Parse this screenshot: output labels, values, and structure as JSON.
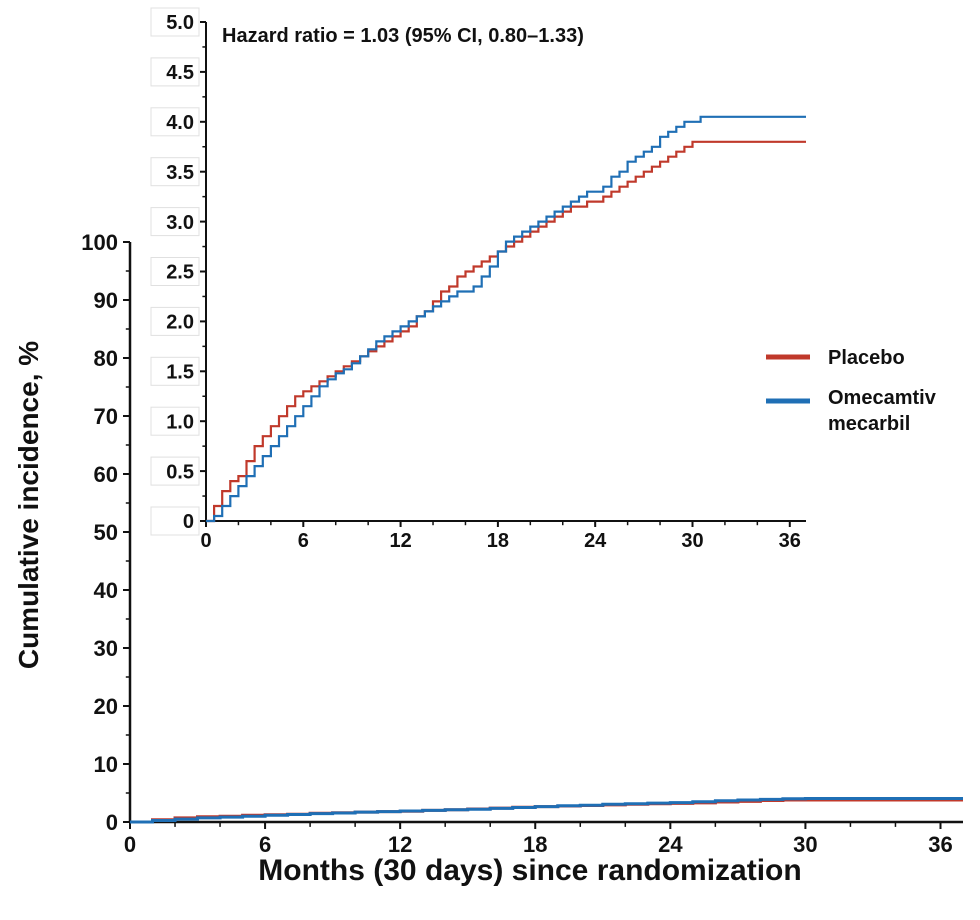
{
  "chart_data": [
    {
      "id": "main",
      "type": "line",
      "step": true,
      "ylabel": "Cumulative incidence, %",
      "xlabel": "Months (30 days) since randomization",
      "xlim": [
        0,
        37
      ],
      "ylim": [
        0,
        100
      ],
      "xticks": [
        "0",
        "6",
        "12",
        "18",
        "24",
        "30",
        "36"
      ],
      "yticks": [
        "0",
        "10",
        "20",
        "30",
        "40",
        "50",
        "60",
        "70",
        "80",
        "90",
        "100"
      ],
      "grid": false,
      "series": [
        {
          "name": "Placebo",
          "color": "#c0392b",
          "x": [
            0,
            1,
            2,
            3,
            4,
            5,
            6,
            7,
            8,
            9,
            10,
            11,
            12,
            13,
            14,
            15,
            16,
            17,
            18,
            19,
            20,
            21,
            22,
            23,
            24,
            25,
            26,
            27,
            28,
            29,
            30,
            31,
            32,
            33,
            34,
            35,
            36,
            37
          ],
          "values": [
            0,
            0.4,
            0.7,
            0.9,
            1.0,
            1.15,
            1.25,
            1.35,
            1.5,
            1.6,
            1.7,
            1.8,
            1.85,
            2.0,
            2.1,
            2.25,
            2.4,
            2.55,
            2.65,
            2.75,
            2.85,
            2.95,
            3.05,
            3.15,
            3.2,
            3.3,
            3.45,
            3.55,
            3.7,
            3.8,
            3.8,
            3.8,
            3.8,
            3.8,
            3.8,
            3.8,
            3.8,
            3.8
          ]
        },
        {
          "name": "Omecamtiv mecarbil",
          "color": "#1f6fb5",
          "x": [
            0,
            1,
            2,
            3,
            4,
            5,
            6,
            7,
            8,
            9,
            10,
            11,
            12,
            13,
            14,
            15,
            16,
            17,
            18,
            19,
            20,
            21,
            22,
            23,
            24,
            25,
            26,
            27,
            28,
            29,
            30,
            31,
            32,
            33,
            34,
            35,
            36,
            37
          ],
          "values": [
            0,
            0.25,
            0.5,
            0.7,
            0.85,
            1.0,
            1.15,
            1.3,
            1.45,
            1.55,
            1.7,
            1.8,
            1.9,
            2.0,
            2.1,
            2.2,
            2.35,
            2.5,
            2.65,
            2.8,
            2.9,
            3.05,
            3.15,
            3.25,
            3.35,
            3.5,
            3.65,
            3.8,
            3.9,
            4.0,
            4.05,
            4.05,
            4.05,
            4.05,
            4.05,
            4.05,
            4.05,
            4.05
          ]
        }
      ]
    },
    {
      "id": "inset",
      "type": "line",
      "step": true,
      "annotation": "Hazard ratio = 1.03 (95% CI, 0.80–1.33)",
      "xlim": [
        0,
        37
      ],
      "ylim": [
        0,
        5.0
      ],
      "xticks": [
        "0",
        "6",
        "12",
        "18",
        "24",
        "30",
        "36"
      ],
      "yticks": [
        "0",
        "0.5",
        "1.0",
        "1.5",
        "2.0",
        "2.5",
        "3.0",
        "3.5",
        "4.0",
        "4.5",
        "5.0"
      ],
      "grid": false,
      "series": [
        {
          "name": "Placebo",
          "color": "#c0392b",
          "x": [
            0,
            0.5,
            1,
            1.5,
            2,
            2.5,
            3,
            3.5,
            4,
            4.5,
            5,
            5.5,
            6,
            6.5,
            7,
            7.5,
            8,
            8.5,
            9,
            9.5,
            10,
            10.5,
            11,
            11.5,
            12,
            12.5,
            13,
            13.5,
            14,
            14.5,
            15,
            15.5,
            16,
            16.5,
            17,
            17.5,
            18,
            18.5,
            19,
            19.5,
            20,
            20.5,
            21,
            21.5,
            22,
            22.5,
            23,
            23.5,
            24,
            24.5,
            25,
            25.5,
            26,
            26.5,
            27,
            27.5,
            28,
            28.5,
            29,
            29.5,
            30,
            31,
            32,
            33,
            34,
            35,
            36,
            37
          ],
          "values": [
            0,
            0.15,
            0.3,
            0.4,
            0.45,
            0.6,
            0.75,
            0.85,
            0.95,
            1.05,
            1.15,
            1.25,
            1.3,
            1.35,
            1.4,
            1.45,
            1.5,
            1.55,
            1.6,
            1.65,
            1.7,
            1.75,
            1.8,
            1.85,
            1.9,
            1.95,
            2.05,
            2.1,
            2.2,
            2.3,
            2.35,
            2.45,
            2.5,
            2.55,
            2.6,
            2.65,
            2.7,
            2.75,
            2.8,
            2.85,
            2.9,
            2.95,
            3.0,
            3.05,
            3.1,
            3.15,
            3.15,
            3.2,
            3.2,
            3.25,
            3.3,
            3.35,
            3.4,
            3.45,
            3.5,
            3.55,
            3.6,
            3.65,
            3.7,
            3.75,
            3.8,
            3.8,
            3.8,
            3.8,
            3.8,
            3.8,
            3.8,
            3.8
          ]
        },
        {
          "name": "Omecamtiv mecarbil",
          "color": "#1f6fb5",
          "x": [
            0,
            0.5,
            1,
            1.5,
            2,
            2.5,
            3,
            3.5,
            4,
            4.5,
            5,
            5.5,
            6,
            6.5,
            7,
            7.5,
            8,
            8.5,
            9,
            9.5,
            10,
            10.5,
            11,
            11.5,
            12,
            12.5,
            13,
            13.5,
            14,
            14.5,
            15,
            15.5,
            16,
            16.5,
            17,
            17.5,
            18,
            18.5,
            19,
            19.5,
            20,
            20.5,
            21,
            21.5,
            22,
            22.5,
            23,
            23.5,
            24,
            24.5,
            25,
            25.5,
            26,
            26.5,
            27,
            27.5,
            28,
            28.5,
            29,
            29.5,
            30,
            30.5,
            31,
            32,
            33,
            34,
            35,
            36,
            37
          ],
          "values": [
            0,
            0.05,
            0.15,
            0.25,
            0.35,
            0.45,
            0.55,
            0.65,
            0.75,
            0.85,
            0.95,
            1.05,
            1.15,
            1.25,
            1.35,
            1.42,
            1.48,
            1.52,
            1.58,
            1.65,
            1.72,
            1.8,
            1.85,
            1.9,
            1.95,
            2.0,
            2.05,
            2.1,
            2.15,
            2.2,
            2.25,
            2.3,
            2.3,
            2.35,
            2.45,
            2.55,
            2.7,
            2.8,
            2.85,
            2.9,
            2.95,
            3.0,
            3.05,
            3.1,
            3.15,
            3.2,
            3.25,
            3.3,
            3.3,
            3.35,
            3.45,
            3.5,
            3.6,
            3.65,
            3.7,
            3.75,
            3.85,
            3.9,
            3.95,
            4.0,
            4.0,
            4.05,
            4.05,
            4.05,
            4.05,
            4.05,
            4.05,
            4.05,
            4.05
          ]
        }
      ]
    }
  ],
  "legend": {
    "placement": "right",
    "items": [
      {
        "label": "Placebo",
        "color": "#c0392b"
      },
      {
        "label_line1": "Omecamtiv",
        "label_line2": "mecarbil",
        "color": "#1f6fb5"
      }
    ]
  }
}
